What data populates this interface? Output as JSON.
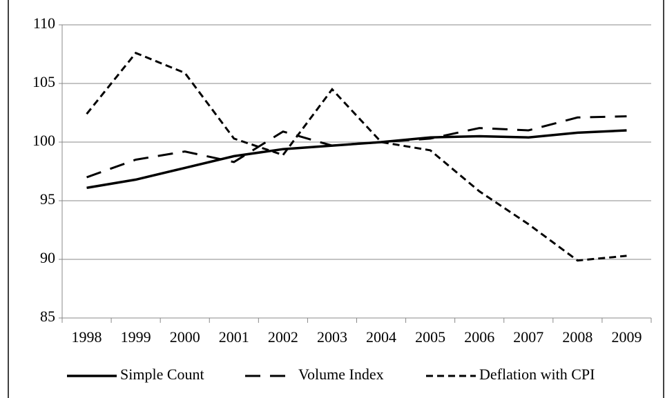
{
  "chart_data": {
    "type": "line",
    "categories": [
      "1998",
      "1999",
      "2000",
      "2001",
      "2002",
      "2003",
      "2004",
      "2005",
      "2006",
      "2007",
      "2008",
      "2009"
    ],
    "series": [
      {
        "name": "Simple Count",
        "color": "#000000",
        "dash": "solid",
        "values": [
          96.1,
          96.8,
          97.8,
          98.8,
          99.4,
          99.7,
          100.0,
          100.4,
          100.5,
          100.4,
          100.8,
          101.0
        ]
      },
      {
        "name": "Volume Index",
        "color": "#000000",
        "dash": "long",
        "values": [
          97.0,
          98.5,
          99.2,
          98.3,
          100.9,
          99.7,
          100.0,
          100.3,
          101.2,
          101.0,
          102.1,
          102.2
        ]
      },
      {
        "name": "Deflation with CPI",
        "color": "#000000",
        "dash": "short",
        "values": [
          102.4,
          107.6,
          105.9,
          100.3,
          98.9,
          104.5,
          100.0,
          99.3,
          95.8,
          93.0,
          89.9,
          90.3
        ]
      }
    ],
    "ylim": [
      85,
      110
    ],
    "yticks": [
      85,
      90,
      95,
      100,
      105,
      110
    ],
    "grid": true,
    "legend": "bottom"
  }
}
